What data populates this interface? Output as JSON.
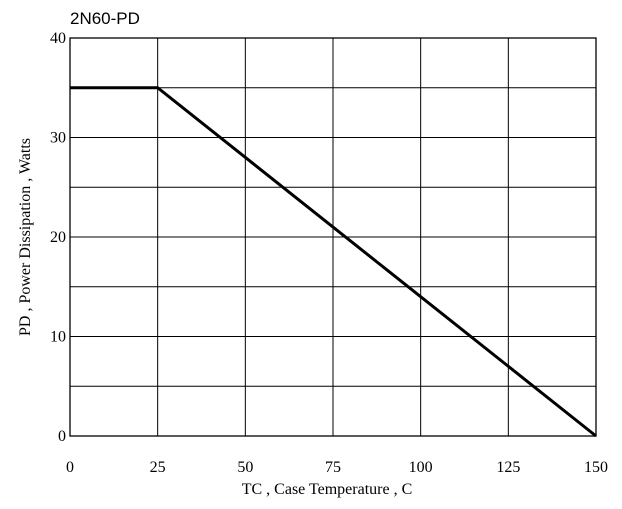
{
  "chart_data": {
    "type": "line",
    "title": "2N60-PD",
    "xlabel": "TC , Case Temperature , C",
    "ylabel": "PD , Power Dissipation ,  Watts",
    "x_ticks": [
      0,
      25,
      50,
      75,
      100,
      125,
      150
    ],
    "y_ticks": [
      0,
      10,
      20,
      30,
      40
    ],
    "xlim": [
      0,
      150
    ],
    "ylim": [
      0,
      40
    ],
    "x_grid_step": 25,
    "y_grid_step": 5,
    "grid": true,
    "line_color": "#000000",
    "series": [
      {
        "x": [
          0,
          25,
          150
        ],
        "y": [
          35,
          35,
          0
        ]
      }
    ]
  }
}
